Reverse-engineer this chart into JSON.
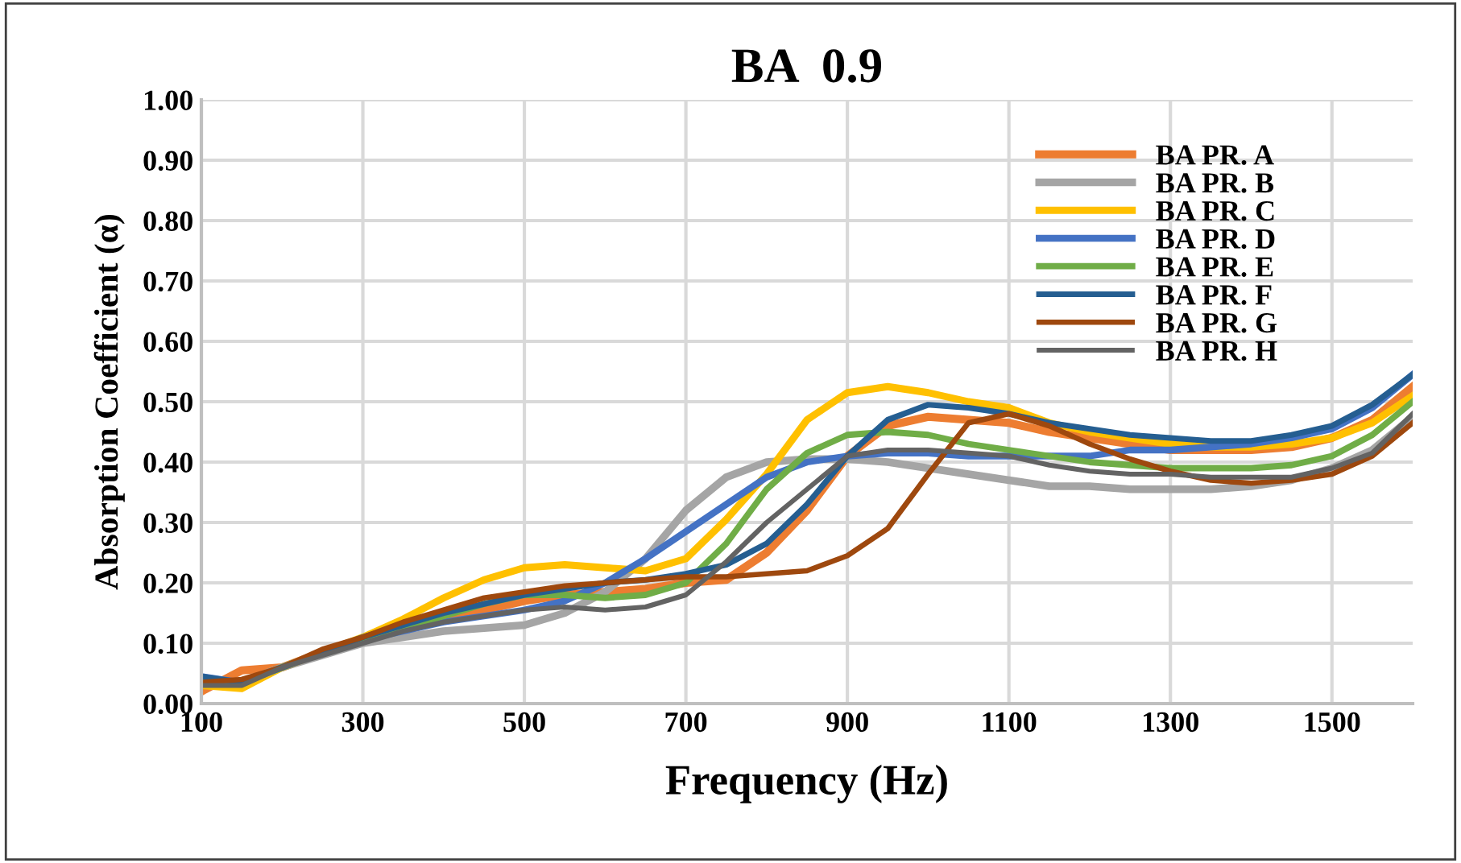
{
  "chart_data": {
    "type": "line",
    "title": "BA  0.9",
    "xlabel": "Frequency (Hz)",
    "ylabel": "Absorption Coefficient (α)",
    "x": [
      100,
      150,
      200,
      250,
      300,
      350,
      400,
      450,
      500,
      550,
      600,
      650,
      700,
      750,
      800,
      850,
      900,
      950,
      1000,
      1050,
      1100,
      1150,
      1200,
      1250,
      1300,
      1350,
      1400,
      1450,
      1500,
      1550,
      1600
    ],
    "xlim": [
      100,
      1600
    ],
    "xticks": [
      100,
      300,
      500,
      700,
      900,
      1100,
      1300,
      1500
    ],
    "ylim": [
      0,
      1
    ],
    "yticks": [
      {
        "value": 0,
        "label": "0.00"
      },
      {
        "value": 0.1,
        "label": "0.10"
      },
      {
        "value": 0.2,
        "label": "0.20"
      },
      {
        "value": 0.3,
        "label": "0.30"
      },
      {
        "value": 0.4,
        "label": "0.40"
      },
      {
        "value": 0.5,
        "label": "0.50"
      },
      {
        "value": 0.6,
        "label": "0.60"
      },
      {
        "value": 0.7,
        "label": "0.70"
      },
      {
        "value": 0.8,
        "label": "0.80"
      },
      {
        "value": 0.9,
        "label": "0.90"
      },
      {
        "value": 1,
        "label": "1.00"
      }
    ],
    "grid": true,
    "legend": "top right",
    "marker": "none",
    "line_style": "solid",
    "series": [
      {
        "name": "BA PR. A",
        "color": "#ed7d31",
        "values": [
          0.02,
          0.055,
          0.06,
          0.085,
          0.105,
          0.12,
          0.14,
          0.155,
          0.17,
          0.18,
          0.185,
          0.19,
          0.2,
          0.205,
          0.25,
          0.32,
          0.41,
          0.46,
          0.475,
          0.47,
          0.465,
          0.45,
          0.44,
          0.43,
          0.42,
          0.42,
          0.42,
          0.425,
          0.44,
          0.47,
          0.525
        ]
      },
      {
        "name": "BA PR. B",
        "color": "#a5a5a5",
        "values": [
          0.04,
          0.035,
          0.06,
          0.08,
          0.1,
          0.11,
          0.12,
          0.125,
          0.13,
          0.15,
          0.185,
          0.24,
          0.32,
          0.375,
          0.4,
          0.405,
          0.405,
          0.4,
          0.39,
          0.38,
          0.37,
          0.36,
          0.36,
          0.355,
          0.355,
          0.355,
          0.36,
          0.37,
          0.39,
          0.42,
          0.475
        ]
      },
      {
        "name": "BA PR. C",
        "color": "#ffc000",
        "values": [
          0.03,
          0.025,
          0.06,
          0.085,
          0.11,
          0.14,
          0.175,
          0.205,
          0.225,
          0.23,
          0.225,
          0.22,
          0.24,
          0.305,
          0.38,
          0.47,
          0.515,
          0.525,
          0.515,
          0.5,
          0.49,
          0.465,
          0.45,
          0.44,
          0.43,
          0.425,
          0.425,
          0.43,
          0.44,
          0.465,
          0.51
        ]
      },
      {
        "name": "BA PR. D",
        "color": "#4472c4",
        "values": [
          0.045,
          0.035,
          0.06,
          0.085,
          0.105,
          0.12,
          0.135,
          0.145,
          0.155,
          0.17,
          0.2,
          0.24,
          0.285,
          0.33,
          0.375,
          0.4,
          0.41,
          0.415,
          0.415,
          0.41,
          0.41,
          0.41,
          0.41,
          0.42,
          0.42,
          0.425,
          0.43,
          0.44,
          0.455,
          0.49,
          0.545
        ]
      },
      {
        "name": "BA PR. E",
        "color": "#70ad47",
        "values": [
          0.035,
          0.035,
          0.06,
          0.085,
          0.105,
          0.125,
          0.145,
          0.165,
          0.18,
          0.18,
          0.175,
          0.18,
          0.2,
          0.265,
          0.355,
          0.415,
          0.445,
          0.45,
          0.445,
          0.43,
          0.42,
          0.41,
          0.4,
          0.395,
          0.39,
          0.39,
          0.39,
          0.395,
          0.41,
          0.445,
          0.5
        ]
      },
      {
        "name": "BA PR. F",
        "color": "#255e91",
        "values": [
          0.045,
          0.035,
          0.06,
          0.085,
          0.11,
          0.13,
          0.15,
          0.165,
          0.18,
          0.19,
          0.2,
          0.205,
          0.215,
          0.23,
          0.265,
          0.33,
          0.41,
          0.47,
          0.495,
          0.49,
          0.48,
          0.465,
          0.455,
          0.445,
          0.44,
          0.435,
          0.435,
          0.445,
          0.46,
          0.495,
          0.545
        ]
      },
      {
        "name": "BA PR. G",
        "color": "#9e480e",
        "values": [
          0.035,
          0.04,
          0.06,
          0.09,
          0.11,
          0.135,
          0.155,
          0.175,
          0.185,
          0.195,
          0.2,
          0.205,
          0.21,
          0.21,
          0.215,
          0.22,
          0.245,
          0.29,
          0.38,
          0.465,
          0.48,
          0.46,
          0.43,
          0.405,
          0.385,
          0.37,
          0.365,
          0.37,
          0.38,
          0.41,
          0.465
        ]
      },
      {
        "name": "BA PR. H",
        "color": "#636363",
        "values": [
          0.03,
          0.03,
          0.06,
          0.08,
          0.1,
          0.12,
          0.135,
          0.145,
          0.155,
          0.16,
          0.155,
          0.16,
          0.18,
          0.235,
          0.3,
          0.355,
          0.41,
          0.42,
          0.42,
          0.415,
          0.41,
          0.395,
          0.385,
          0.38,
          0.38,
          0.375,
          0.375,
          0.375,
          0.39,
          0.415,
          0.48
        ]
      }
    ]
  }
}
